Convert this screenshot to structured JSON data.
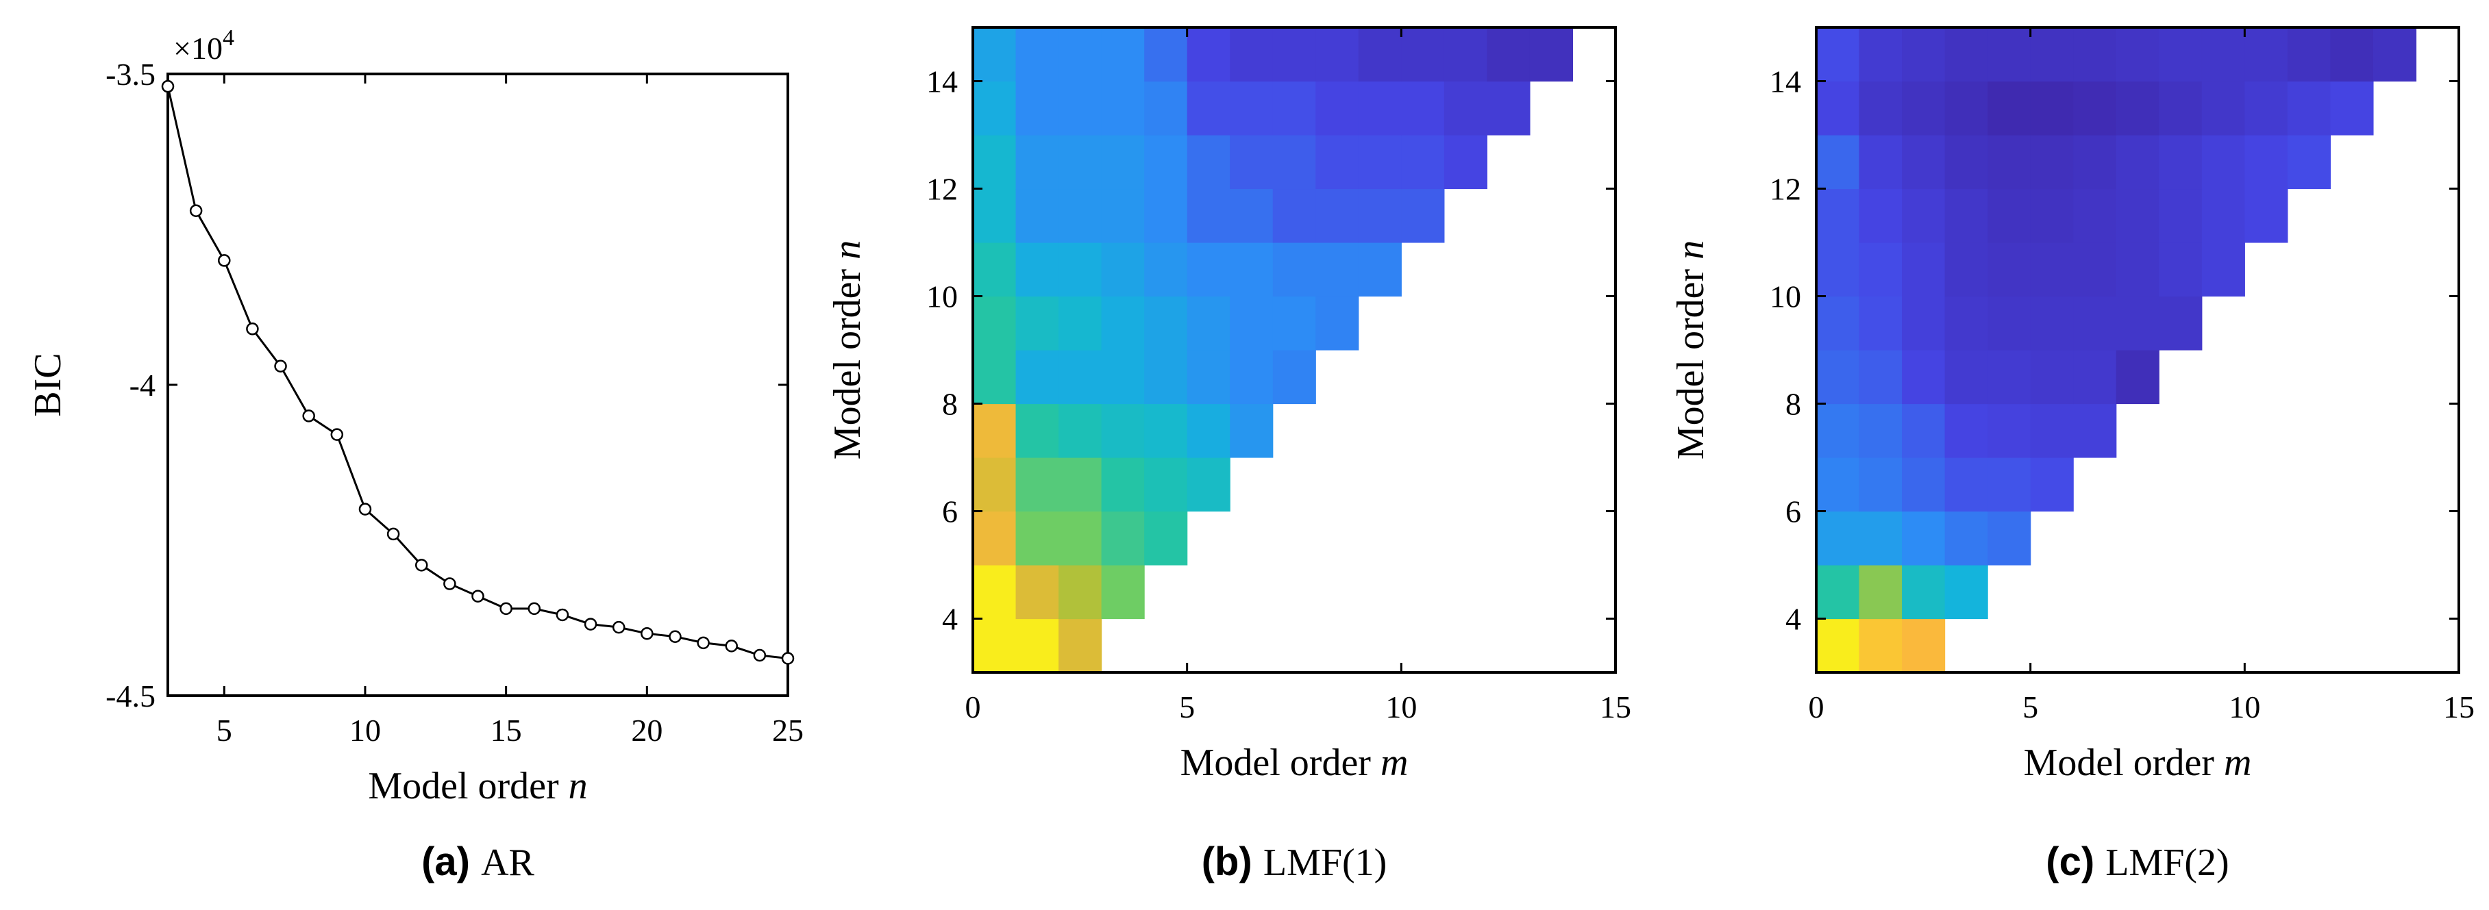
{
  "chart_data": [
    {
      "id": "a",
      "type": "line",
      "title": "",
      "xlabel": "Model order",
      "xlabel_var": "n",
      "ylabel": "BIC",
      "exponent_label": "×10",
      "exponent_power": "4",
      "xlim": [
        3,
        25
      ],
      "ylim": [
        -4.5,
        -3.5
      ],
      "xticks": [
        5,
        10,
        15,
        20,
        25
      ],
      "xtick_labels": [
        "5",
        "10",
        "15",
        "20",
        "25"
      ],
      "yticks": [
        -3.5,
        -4,
        -4.5
      ],
      "ytick_labels": [
        "-3.5",
        "-4",
        "-4.5"
      ],
      "grid": false,
      "series": [
        {
          "name": "BIC",
          "x": [
            3,
            4,
            5,
            6,
            7,
            8,
            9,
            10,
            11,
            12,
            13,
            14,
            15,
            16,
            17,
            18,
            19,
            20,
            21,
            22,
            23,
            24,
            25
          ],
          "values": [
            -3.52,
            -3.72,
            -3.8,
            -3.91,
            -3.97,
            -4.05,
            -4.08,
            -4.2,
            -4.24,
            -4.29,
            -4.32,
            -4.34,
            -4.36,
            -4.36,
            -4.37,
            -4.385,
            -4.39,
            -4.4,
            -4.405,
            -4.415,
            -4.42,
            -4.435,
            -4.44
          ]
        }
      ],
      "caption_label": "(a)",
      "caption_text": "AR"
    },
    {
      "id": "b",
      "type": "heatmap",
      "xlabel": "Model order",
      "xlabel_var": "m",
      "ylabel": "Model order",
      "ylabel_var": "n",
      "xlim": [
        0,
        15
      ],
      "ylim": [
        3,
        15
      ],
      "xticks": [
        0,
        5,
        10,
        15
      ],
      "xtick_labels": [
        "0",
        "5",
        "10",
        "15"
      ],
      "yticks": [
        4,
        6,
        8,
        10,
        12,
        14
      ],
      "ytick_labels": [
        "4",
        "6",
        "8",
        "10",
        "12",
        "14"
      ],
      "rows_n": [
        3,
        4,
        5,
        6,
        7,
        8,
        9,
        10,
        11,
        12,
        13,
        14
      ],
      "cells": [
        [
          0.98,
          0.98,
          0.85
        ],
        [
          0.98,
          0.85,
          0.78,
          0.68
        ],
        [
          0.88,
          0.68,
          0.68,
          0.6,
          0.56
        ],
        [
          0.85,
          0.64,
          0.64,
          0.56,
          0.52,
          0.48
        ],
        [
          0.88,
          0.56,
          0.52,
          0.48,
          0.46,
          0.4,
          0.33
        ],
        [
          0.56,
          0.4,
          0.4,
          0.4,
          0.37,
          0.33,
          0.3,
          0.28
        ],
        [
          0.56,
          0.48,
          0.45,
          0.4,
          0.37,
          0.33,
          0.3,
          0.3,
          0.28
        ],
        [
          0.52,
          0.4,
          0.4,
          0.37,
          0.33,
          0.3,
          0.3,
          0.28,
          0.28,
          0.28
        ],
        [
          0.45,
          0.33,
          0.33,
          0.33,
          0.3,
          0.24,
          0.24,
          0.2,
          0.2,
          0.2,
          0.2
        ],
        [
          0.45,
          0.33,
          0.33,
          0.33,
          0.3,
          0.24,
          0.2,
          0.2,
          0.17,
          0.17,
          0.17,
          0.14
        ],
        [
          0.4,
          0.3,
          0.3,
          0.3,
          0.28,
          0.17,
          0.17,
          0.17,
          0.14,
          0.14,
          0.14,
          0.11,
          0.11
        ],
        [
          0.37,
          0.3,
          0.3,
          0.3,
          0.24,
          0.14,
          0.11,
          0.11,
          0.11,
          0.08,
          0.08,
          0.08,
          0.05,
          0.05
        ]
      ],
      "caption_label": "(b)",
      "caption_text": "LMF(1)"
    },
    {
      "id": "c",
      "type": "heatmap",
      "xlabel": "Model order",
      "xlabel_var": "m",
      "ylabel": "Model order",
      "ylabel_var": "n",
      "xlim": [
        0,
        15
      ],
      "ylim": [
        3,
        15
      ],
      "xticks": [
        0,
        5,
        10,
        15
      ],
      "xtick_labels": [
        "0",
        "5",
        "10",
        "15"
      ],
      "yticks": [
        4,
        6,
        8,
        10,
        12,
        14
      ],
      "ytick_labels": [
        "4",
        "6",
        "8",
        "10",
        "12",
        "14"
      ],
      "rows_n": [
        3,
        4,
        5,
        6,
        7,
        8,
        9,
        10,
        11,
        12,
        13,
        14
      ],
      "cells": [
        [
          0.98,
          0.92,
          0.9
        ],
        [
          0.56,
          0.72,
          0.48,
          0.42
        ],
        [
          0.35,
          0.35,
          0.3,
          0.26,
          0.24
        ],
        [
          0.28,
          0.26,
          0.22,
          0.18,
          0.18,
          0.16
        ],
        [
          0.26,
          0.24,
          0.2,
          0.14,
          0.13,
          0.12,
          0.12
        ],
        [
          0.22,
          0.2,
          0.14,
          0.1,
          0.1,
          0.09,
          0.09,
          0.04
        ],
        [
          0.2,
          0.17,
          0.12,
          0.09,
          0.08,
          0.08,
          0.08,
          0.08,
          0.08
        ],
        [
          0.18,
          0.16,
          0.12,
          0.08,
          0.07,
          0.07,
          0.07,
          0.08,
          0.1,
          0.12
        ],
        [
          0.18,
          0.14,
          0.11,
          0.08,
          0.06,
          0.06,
          0.07,
          0.08,
          0.1,
          0.12,
          0.14
        ],
        [
          0.22,
          0.12,
          0.09,
          0.06,
          0.05,
          0.05,
          0.06,
          0.08,
          0.1,
          0.12,
          0.14,
          0.16
        ],
        [
          0.14,
          0.08,
          0.06,
          0.04,
          0.02,
          0.02,
          0.03,
          0.04,
          0.06,
          0.08,
          0.1,
          0.12,
          0.14
        ],
        [
          0.16,
          0.1,
          0.08,
          0.06,
          0.06,
          0.06,
          0.06,
          0.07,
          0.08,
          0.08,
          0.08,
          0.06,
          0.04,
          0.06
        ]
      ],
      "caption_label": "(c)",
      "caption_text": "LMF(2)"
    }
  ]
}
